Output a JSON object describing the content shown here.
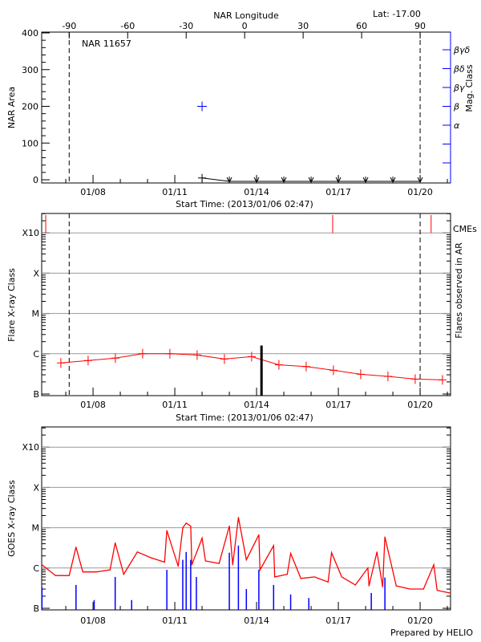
{
  "chart_data": [
    {
      "type": "scatter",
      "title": "NAR 11657",
      "latitude_label": "Lat: -17.00",
      "top_axis_label": "NAR Longitude",
      "top_ticks": [
        "-90",
        "-60",
        "-30",
        "0",
        "30",
        "60",
        "90"
      ],
      "xlabel": "Start Time: (2013/01/06 02:47)",
      "ylabel": "NAR Area",
      "y2label": "Mag. Class",
      "xrange": [
        "2013-01-06T02:47",
        "2013-01-21T02:47"
      ],
      "xticks": [
        {
          "t": "2013-01-08T00:00",
          "label": "01/08"
        },
        {
          "t": "2013-01-11T00:00",
          "label": "01/11"
        },
        {
          "t": "2013-01-14T00:00",
          "label": "01/14"
        },
        {
          "t": "2013-01-17T00:00",
          "label": "01/17"
        },
        {
          "t": "2013-01-20T00:00",
          "label": "01/20"
        }
      ],
      "ylim": [
        -9,
        402
      ],
      "yticks": [
        "0",
        "100",
        "200",
        "300",
        "400"
      ],
      "y2ticks": [
        "α",
        "β",
        "βγ",
        "βδ",
        "βγδ"
      ],
      "limb_lines": [
        "2013-01-07T03:00",
        "2013-01-20T00:00"
      ],
      "area": [
        {
          "t": "2013-01-12T00:00",
          "v": 5
        },
        {
          "t": "2013-01-13T00:00",
          "v": 0
        },
        {
          "t": "2013-01-14T00:00",
          "v": 0
        },
        {
          "t": "2013-01-15T00:00",
          "v": 0
        },
        {
          "t": "2013-01-16T00:00",
          "v": 0
        },
        {
          "t": "2013-01-17T00:00",
          "v": 0
        },
        {
          "t": "2013-01-18T00:00",
          "v": 0
        },
        {
          "t": "2013-01-19T00:00",
          "v": 0
        },
        {
          "t": "2013-01-20T00:00",
          "v": 0
        }
      ],
      "mag_class": [
        {
          "t": "2013-01-12T00:00",
          "class": "β"
        }
      ],
      "colors": {
        "area": "#000000",
        "mag_class": "#0000ff"
      }
    },
    {
      "type": "line",
      "ylabel": "Flare X-ray Class",
      "y2label": "Flares observed in AR",
      "xlabel": "Start Time: (2013/01/06 02:47)",
      "yscale": "log",
      "yticks": [
        {
          "label": "B",
          "v": 1e-07
        },
        {
          "label": "C",
          "v": 1e-06
        },
        {
          "label": "M",
          "v": 1e-05
        },
        {
          "label": "X",
          "v": 0.0001
        },
        {
          "label": "X10",
          "v": 0.001
        }
      ],
      "grid": true,
      "background_series": [
        {
          "t": "2013-01-06T19:40",
          "v": 5.9e-07
        },
        {
          "t": "2013-01-07T19:40",
          "v": 6.8e-07
        },
        {
          "t": "2013-01-08T19:40",
          "v": 7.8e-07
        },
        {
          "t": "2013-01-09T19:40",
          "v": 1e-06
        },
        {
          "t": "2013-01-10T19:40",
          "v": 1e-06
        },
        {
          "t": "2013-01-11T19:40",
          "v": 9.3e-07
        },
        {
          "t": "2013-01-12T19:40",
          "v": 7.4e-07
        },
        {
          "t": "2013-01-13T19:40",
          "v": 8.5e-07
        },
        {
          "t": "2013-01-14T19:40",
          "v": 5.3e-07
        },
        {
          "t": "2013-01-15T19:40",
          "v": 4.8e-07
        },
        {
          "t": "2013-01-16T19:40",
          "v": 3.9e-07
        },
        {
          "t": "2013-01-17T19:40",
          "v": 3.1e-07
        },
        {
          "t": "2013-01-18T19:40",
          "v": 2.75e-07
        },
        {
          "t": "2013-01-19T19:40",
          "v": 2.35e-07
        },
        {
          "t": "2013-01-20T19:40",
          "v": 2.25e-07
        }
      ],
      "flares": [
        {
          "t": "2013-01-14T04:20",
          "v": 1.6e-06
        }
      ],
      "cme_label": "CMEs",
      "cmes": [
        "2013-01-06T06:20",
        "2013-01-16T19:00",
        "2013-01-20T09:40"
      ],
      "limb_lines": [
        "2013-01-07T03:00",
        "2013-01-20T00:00"
      ],
      "colors": {
        "background": "#ff0000",
        "flares": "#000000",
        "cmes": "#ff0000"
      }
    },
    {
      "type": "line",
      "ylabel": "GOES X-ray Class",
      "footer": "Prepared by HELIO",
      "yscale": "log",
      "grid": true,
      "series": [
        {
          "color": "#ff0000",
          "values": [
            {
              "t": "2013-01-06T03:00",
              "v": 1.2e-06
            },
            {
              "t": "2013-01-06T15:00",
              "v": 6.5e-07
            },
            {
              "t": "2013-01-07T03:00",
              "v": 6.5e-07
            },
            {
              "t": "2013-01-07T09:00",
              "v": 3.3e-06
            },
            {
              "t": "2013-01-07T15:00",
              "v": 8e-07
            },
            {
              "t": "2013-01-08T03:00",
              "v": 8e-07
            },
            {
              "t": "2013-01-08T15:00",
              "v": 9e-07
            },
            {
              "t": "2013-01-08T19:30",
              "v": 4.2e-06
            },
            {
              "t": "2013-01-09T03:00",
              "v": 7e-07
            },
            {
              "t": "2013-01-09T15:00",
              "v": 2.5e-06
            },
            {
              "t": "2013-01-10T03:00",
              "v": 1.8e-06
            },
            {
              "t": "2013-01-10T15:00",
              "v": 1.4e-06
            },
            {
              "t": "2013-01-10T17:00",
              "v": 8.5e-06
            },
            {
              "t": "2013-01-11T03:00",
              "v": 1.1e-06
            },
            {
              "t": "2013-01-11T07:00",
              "v": 9.9e-06
            },
            {
              "t": "2013-01-11T10:00",
              "v": 1.3e-05
            },
            {
              "t": "2013-01-11T14:00",
              "v": 1.1e-05
            },
            {
              "t": "2013-01-11T15:00",
              "v": 1.2e-06
            },
            {
              "t": "2013-01-12T00:00",
              "v": 5.5e-06
            },
            {
              "t": "2013-01-12T03:00",
              "v": 1.5e-06
            },
            {
              "t": "2013-01-12T15:00",
              "v": 1.3e-06
            },
            {
              "t": "2013-01-13T00:00",
              "v": 1.1e-05
            },
            {
              "t": "2013-01-13T03:00",
              "v": 1.2e-06
            },
            {
              "t": "2013-01-13T08:00",
              "v": 1.8e-05
            },
            {
              "t": "2013-01-13T15:00",
              "v": 1.6e-06
            },
            {
              "t": "2013-01-14T02:00",
              "v": 6.7e-06
            },
            {
              "t": "2013-01-14T03:00",
              "v": 9e-07
            },
            {
              "t": "2013-01-14T15:00",
              "v": 3.6e-06
            },
            {
              "t": "2013-01-14T16:00",
              "v": 6e-07
            },
            {
              "t": "2013-01-15T03:00",
              "v": 7e-07
            },
            {
              "t": "2013-01-15T06:00",
              "v": 2.3e-06
            },
            {
              "t": "2013-01-15T15:00",
              "v": 5.5e-07
            },
            {
              "t": "2013-01-16T03:00",
              "v": 6e-07
            },
            {
              "t": "2013-01-16T15:00",
              "v": 4.5e-07
            },
            {
              "t": "2013-01-16T18:00",
              "v": 2.4e-06
            },
            {
              "t": "2013-01-17T03:00",
              "v": 6e-07
            },
            {
              "t": "2013-01-17T15:00",
              "v": 3.8e-07
            },
            {
              "t": "2013-01-18T02:00",
              "v": 1e-06
            },
            {
              "t": "2013-01-18T03:00",
              "v": 3.6e-07
            },
            {
              "t": "2013-01-18T10:00",
              "v": 2.5e-06
            },
            {
              "t": "2013-01-18T15:00",
              "v": 3.4e-07
            },
            {
              "t": "2013-01-18T17:00",
              "v": 5.9e-06
            },
            {
              "t": "2013-01-19T03:00",
              "v": 3.6e-07
            },
            {
              "t": "2013-01-19T15:00",
              "v": 3e-07
            },
            {
              "t": "2013-01-20T03:00",
              "v": 3e-07
            },
            {
              "t": "2013-01-20T12:00",
              "v": 1.2e-06
            },
            {
              "t": "2013-01-20T15:00",
              "v": 2.8e-07
            },
            {
              "t": "2013-01-21T02:00",
              "v": 2.4e-07
            }
          ]
        },
        {
          "color": "#0000ff",
          "values": [
            {
              "t": "2013-01-06T03:00",
              "v": 3.4e-07
            },
            {
              "t": "2013-01-07T09:00",
              "v": 3.8e-07
            },
            {
              "t": "2013-01-08T01:00",
              "v": 1.6e-07
            },
            {
              "t": "2013-01-08T19:30",
              "v": 6e-07
            },
            {
              "t": "2013-01-09T10:00",
              "v": 1.6e-07
            },
            {
              "t": "2013-01-10T17:00",
              "v": 9e-07
            },
            {
              "t": "2013-01-11T07:00",
              "v": 1.6e-06
            },
            {
              "t": "2013-01-11T10:00",
              "v": 2.5e-06
            },
            {
              "t": "2013-01-11T14:00",
              "v": 1.6e-06
            },
            {
              "t": "2013-01-11T19:00",
              "v": 6e-07
            },
            {
              "t": "2013-01-13T00:00",
              "v": 2.4e-06
            },
            {
              "t": "2013-01-13T08:00",
              "v": 3.6e-06
            },
            {
              "t": "2013-01-13T15:00",
              "v": 3e-07
            },
            {
              "t": "2013-01-14T02:00",
              "v": 9e-07
            },
            {
              "t": "2013-01-14T15:00",
              "v": 3.8e-07
            },
            {
              "t": "2013-01-15T06:00",
              "v": 2.2e-07
            },
            {
              "t": "2013-01-15T22:00",
              "v": 1.8e-07
            },
            {
              "t": "2013-01-18T05:00",
              "v": 2.4e-07
            },
            {
              "t": "2013-01-18T17:00",
              "v": 5.8e-07
            }
          ]
        }
      ],
      "xticks": [
        {
          "t": "2013-01-08T00:00",
          "label": "01/08"
        },
        {
          "t": "2013-01-11T00:00",
          "label": "01/11"
        },
        {
          "t": "2013-01-14T00:00",
          "label": "01/14"
        },
        {
          "t": "2013-01-17T00:00",
          "label": "01/17"
        },
        {
          "t": "2013-01-20T00:00",
          "label": "01/20"
        }
      ]
    }
  ]
}
